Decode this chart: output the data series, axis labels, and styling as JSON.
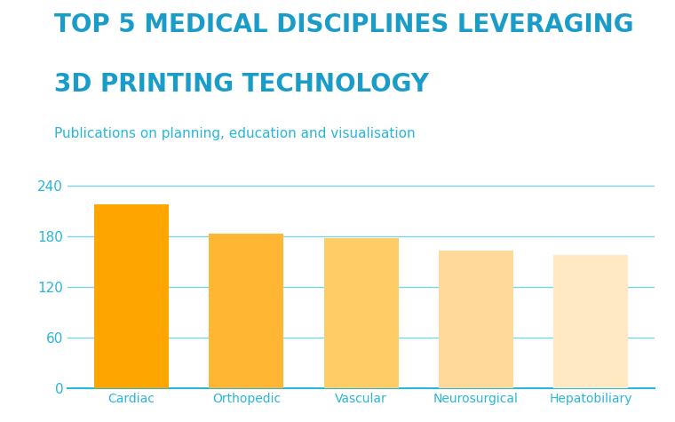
{
  "title_line1": "TOP 5 MEDICAL DISCIPLINES LEVERAGING",
  "title_line2": "3D PRINTING TECHNOLOGY",
  "subtitle": "Publications on planning, education and visualisation",
  "categories": [
    "Cardiac",
    "Orthopedic",
    "Vascular",
    "Neurosurgical",
    "Hepatobiliary"
  ],
  "values": [
    218,
    183,
    178,
    163,
    158
  ],
  "bar_colors": [
    "#FFA500",
    "#FFB733",
    "#FFCC66",
    "#FFD999",
    "#FFE8C2"
  ],
  "title_color": "#1a9cc9",
  "subtitle_color": "#29b6d8",
  "tick_color": "#29b6d8",
  "axis_color": "#29b6d8",
  "label_color": "#29b6d8",
  "background_color": "#ffffff",
  "ylim": [
    0,
    260
  ],
  "yticks": [
    0,
    60,
    120,
    180,
    240
  ],
  "grid_color": "#29b6d8",
  "grid_alpha": 0.6,
  "bar_width": 0.65,
  "title_fontsize": 20,
  "subtitle_fontsize": 11,
  "xlabel_fontsize": 10,
  "ylabel_fontsize": 11
}
